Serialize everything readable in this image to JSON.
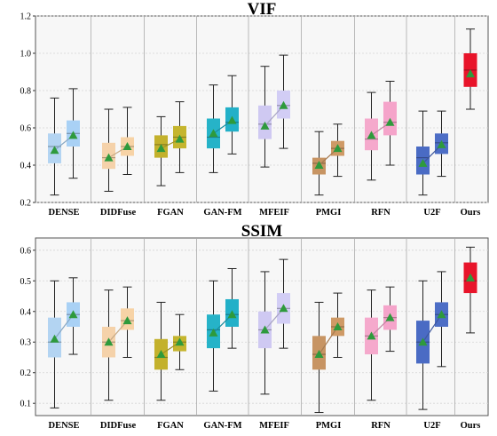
{
  "chart_data": [
    {
      "type": "box",
      "title": "VIF",
      "ylim": [
        0.2,
        1.2
      ],
      "yticks": [
        "0.2",
        "0.4",
        "0.6",
        "0.8",
        "1.0",
        "1.2"
      ],
      "grid": true,
      "categories": [
        "DENSE",
        "DIDFuse",
        "FGAN",
        "GAN-FM",
        "MFEIF",
        "PMGI",
        "RFN",
        "U2F",
        "Ours"
      ],
      "groups": [
        {
          "category": "DENSE",
          "boxes": [
            {
              "color": "#b3d4f2",
              "min": 0.24,
              "q1": 0.41,
              "median": 0.5,
              "q3": 0.57,
              "max": 0.76,
              "mean": 0.48
            },
            {
              "color": "#a9d1f5",
              "min": 0.33,
              "q1": 0.5,
              "median": 0.57,
              "q3": 0.64,
              "max": 0.81,
              "mean": 0.56
            }
          ]
        },
        {
          "category": "DIDFuse",
          "boxes": [
            {
              "color": "#f5d2aa",
              "min": 0.26,
              "q1": 0.38,
              "median": 0.44,
              "q3": 0.52,
              "max": 0.7,
              "mean": 0.44
            },
            {
              "color": "#f7d3a6",
              "min": 0.35,
              "q1": 0.45,
              "median": 0.5,
              "q3": 0.55,
              "max": 0.71,
              "mean": 0.5
            }
          ]
        },
        {
          "category": "FGAN",
          "boxes": [
            {
              "color": "#c3b12c",
              "min": 0.29,
              "q1": 0.44,
              "median": 0.51,
              "q3": 0.56,
              "max": 0.66,
              "mean": 0.49
            },
            {
              "color": "#c5b52e",
              "min": 0.36,
              "q1": 0.49,
              "median": 0.55,
              "q3": 0.61,
              "max": 0.74,
              "mean": 0.54
            }
          ]
        },
        {
          "category": "GAN-FM",
          "boxes": [
            {
              "color": "#26b3c8",
              "min": 0.36,
              "q1": 0.49,
              "median": 0.55,
              "q3": 0.65,
              "max": 0.83,
              "mean": 0.57
            },
            {
              "color": "#22b0c8",
              "min": 0.46,
              "q1": 0.58,
              "median": 0.63,
              "q3": 0.71,
              "max": 0.88,
              "mean": 0.64
            }
          ]
        },
        {
          "category": "MFEIF",
          "boxes": [
            {
              "color": "#cfc9f2",
              "min": 0.39,
              "q1": 0.54,
              "median": 0.62,
              "q3": 0.72,
              "max": 0.93,
              "mean": 0.61
            },
            {
              "color": "#d2cdf5",
              "min": 0.49,
              "q1": 0.65,
              "median": 0.72,
              "q3": 0.8,
              "max": 0.99,
              "mean": 0.72
            }
          ]
        },
        {
          "category": "PMGI",
          "boxes": [
            {
              "color": "#c79463",
              "min": 0.24,
              "q1": 0.35,
              "median": 0.41,
              "q3": 0.44,
              "max": 0.58,
              "mean": 0.4
            },
            {
              "color": "#cf9a66",
              "min": 0.34,
              "q1": 0.45,
              "median": 0.49,
              "q3": 0.53,
              "max": 0.62,
              "mean": 0.49
            }
          ]
        },
        {
          "category": "RFN",
          "boxes": [
            {
              "color": "#f5a9cc",
              "min": 0.32,
              "q1": 0.48,
              "median": 0.54,
              "q3": 0.65,
              "max": 0.79,
              "mean": 0.56
            },
            {
              "color": "#f5a4ca",
              "min": 0.4,
              "q1": 0.56,
              "median": 0.63,
              "q3": 0.74,
              "max": 0.85,
              "mean": 0.63
            }
          ]
        },
        {
          "category": "U2F",
          "boxes": [
            {
              "color": "#4a6bc4",
              "min": 0.24,
              "q1": 0.35,
              "median": 0.44,
              "q3": 0.5,
              "max": 0.69,
              "mean": 0.41
            },
            {
              "color": "#4d6ec6",
              "min": 0.34,
              "q1": 0.46,
              "median": 0.52,
              "q3": 0.57,
              "max": 0.69,
              "mean": 0.51
            }
          ]
        },
        {
          "category": "Ours",
          "boxes": [
            {
              "color": "#e8142a",
              "min": 0.7,
              "q1": 0.82,
              "median": 0.91,
              "q3": 1.0,
              "max": 1.13,
              "mean": 0.89
            }
          ]
        }
      ]
    },
    {
      "type": "box",
      "title": "SSIM",
      "ylim": [
        0.06,
        0.64
      ],
      "yticks": [
        "0.1",
        "0.2",
        "0.3",
        "0.4",
        "0.5",
        "0.6"
      ],
      "grid": true,
      "categories": [
        "DENSE",
        "DIDFuse",
        "FGAN",
        "GAN-FM",
        "MFEIF",
        "PMGI",
        "RFN",
        "U2F",
        "Ours"
      ],
      "groups": [
        {
          "category": "DENSE",
          "boxes": [
            {
              "color": "#b3d4f2",
              "min": 0.085,
              "q1": 0.25,
              "median": 0.3,
              "q3": 0.38,
              "max": 0.5,
              "mean": 0.31
            },
            {
              "color": "#a9d1f5",
              "min": 0.26,
              "q1": 0.35,
              "median": 0.39,
              "q3": 0.43,
              "max": 0.51,
              "mean": 0.39
            }
          ]
        },
        {
          "category": "DIDFuse",
          "boxes": [
            {
              "color": "#f5d2aa",
              "min": 0.11,
              "q1": 0.25,
              "median": 0.3,
              "q3": 0.35,
              "max": 0.47,
              "mean": 0.3
            },
            {
              "color": "#f7d3a6",
              "min": 0.25,
              "q1": 0.34,
              "median": 0.37,
              "q3": 0.41,
              "max": 0.48,
              "mean": 0.37
            }
          ]
        },
        {
          "category": "FGAN",
          "boxes": [
            {
              "color": "#c3b12c",
              "min": 0.11,
              "q1": 0.21,
              "median": 0.25,
              "q3": 0.31,
              "max": 0.43,
              "mean": 0.26
            },
            {
              "color": "#c5b52e",
              "min": 0.21,
              "q1": 0.27,
              "median": 0.3,
              "q3": 0.32,
              "max": 0.39,
              "mean": 0.3
            }
          ]
        },
        {
          "category": "GAN-FM",
          "boxes": [
            {
              "color": "#26b3c8",
              "min": 0.14,
              "q1": 0.28,
              "median": 0.34,
              "q3": 0.39,
              "max": 0.5,
              "mean": 0.33
            },
            {
              "color": "#22b0c8",
              "min": 0.28,
              "q1": 0.35,
              "median": 0.39,
              "q3": 0.44,
              "max": 0.54,
              "mean": 0.39
            }
          ]
        },
        {
          "category": "MFEIF",
          "boxes": [
            {
              "color": "#cfc9f2",
              "min": 0.13,
              "q1": 0.28,
              "median": 0.34,
              "q3": 0.4,
              "max": 0.53,
              "mean": 0.34
            },
            {
              "color": "#d2cdf5",
              "min": 0.28,
              "q1": 0.36,
              "median": 0.41,
              "q3": 0.46,
              "max": 0.57,
              "mean": 0.41
            }
          ]
        },
        {
          "category": "PMGI",
          "boxes": [
            {
              "color": "#c79463",
              "min": 0.07,
              "q1": 0.21,
              "median": 0.26,
              "q3": 0.32,
              "max": 0.43,
              "mean": 0.26
            },
            {
              "color": "#cf9a66",
              "min": 0.25,
              "q1": 0.32,
              "median": 0.35,
              "q3": 0.38,
              "max": 0.46,
              "mean": 0.35
            }
          ]
        },
        {
          "category": "RFN",
          "boxes": [
            {
              "color": "#f5a9cc",
              "min": 0.11,
              "q1": 0.26,
              "median": 0.32,
              "q3": 0.38,
              "max": 0.47,
              "mean": 0.32
            },
            {
              "color": "#f5a4ca",
              "min": 0.27,
              "q1": 0.34,
              "median": 0.38,
              "q3": 0.42,
              "max": 0.48,
              "mean": 0.38
            }
          ]
        },
        {
          "category": "U2F",
          "boxes": [
            {
              "color": "#4a6bc4",
              "min": 0.08,
              "q1": 0.23,
              "median": 0.3,
              "q3": 0.37,
              "max": 0.5,
              "mean": 0.3
            },
            {
              "color": "#4d6ec6",
              "min": 0.22,
              "q1": 0.35,
              "median": 0.39,
              "q3": 0.43,
              "max": 0.53,
              "mean": 0.39
            }
          ]
        },
        {
          "category": "Ours",
          "boxes": [
            {
              "color": "#e8142a",
              "min": 0.33,
              "q1": 0.46,
              "median": 0.5,
              "q3": 0.56,
              "max": 0.61,
              "mean": 0.51
            }
          ]
        }
      ]
    }
  ],
  "colors": {
    "mean_marker": "#2e9a3c",
    "whisker": "#222222",
    "background": "#f7f7f7"
  }
}
